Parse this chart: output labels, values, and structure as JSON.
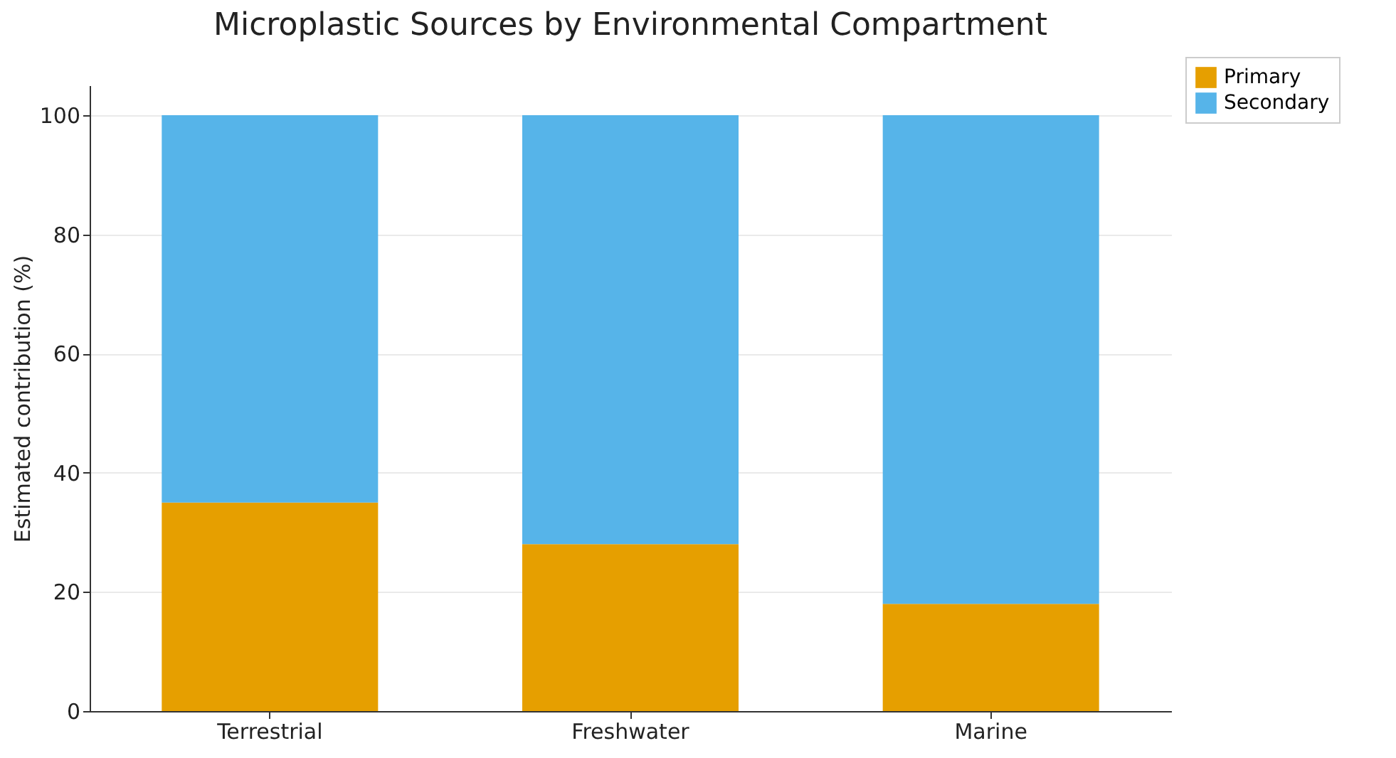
{
  "chart_data": {
    "type": "bar",
    "title": "Microplastic Sources by Environmental Compartment",
    "ylabel": "Estimated contribution (%)",
    "categories": [
      "Terrestrial",
      "Freshwater",
      "Marine"
    ],
    "stacked": true,
    "series": [
      {
        "name": "Primary",
        "color": "#e69f00",
        "values": [
          35,
          28,
          18
        ]
      },
      {
        "name": "Secondary",
        "color": "#56b4e9",
        "values": [
          65,
          72,
          82
        ]
      }
    ],
    "ylim": [
      0,
      105
    ],
    "yticks": [
      0,
      20,
      40,
      60,
      80,
      100
    ],
    "grid": "y",
    "legend": "top right"
  }
}
